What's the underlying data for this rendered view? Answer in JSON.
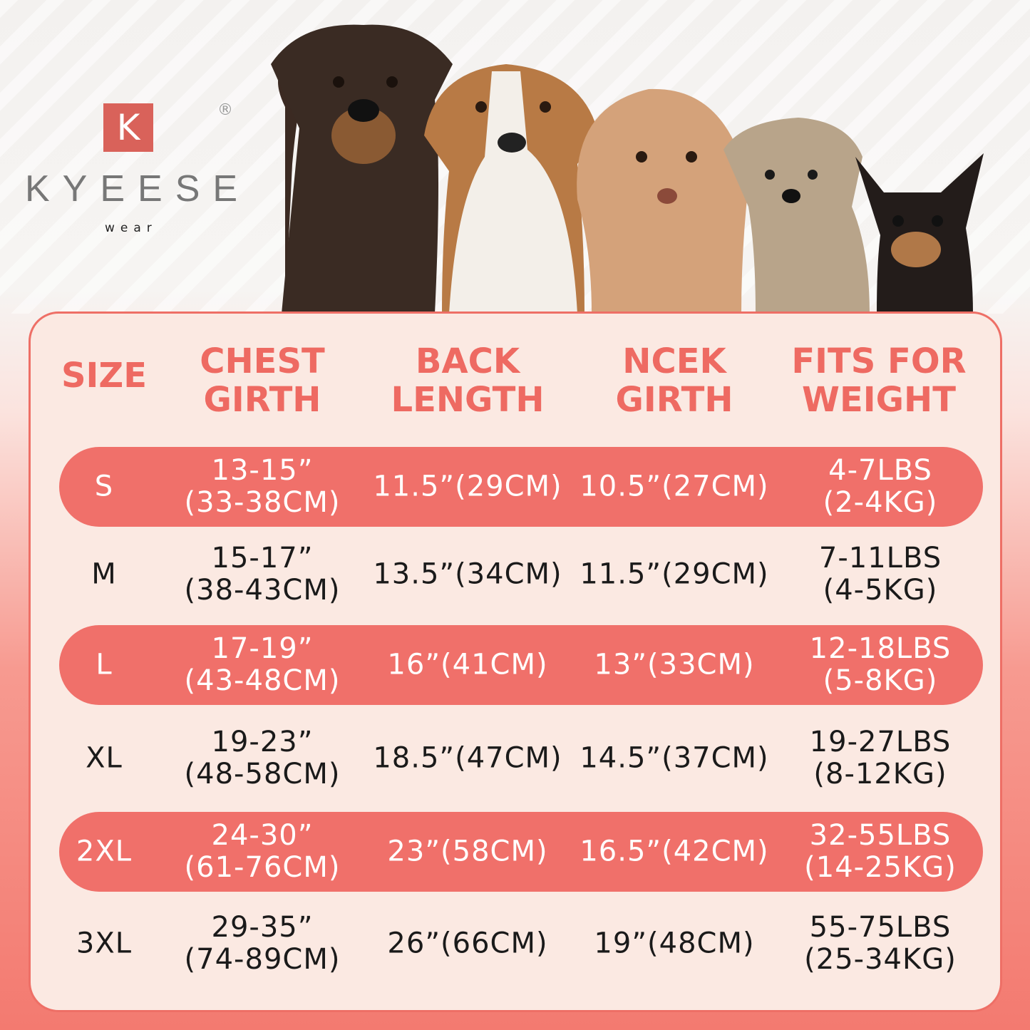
{
  "brand": {
    "mark": "K",
    "name": "KYEESE",
    "sub": "wear",
    "registered": "®"
  },
  "colors": {
    "accent": "#f0706a",
    "panel": "#fbe9e2",
    "header_text": "#ee6a62"
  },
  "headers": [
    [
      "SIZE"
    ],
    [
      "CHEST",
      "GIRTH"
    ],
    [
      "BACK",
      "LENGTH"
    ],
    [
      "NCEK",
      "GIRTH"
    ],
    [
      "FITS FOR",
      "WEIGHT"
    ]
  ],
  "rows": [
    {
      "size": "S",
      "chest": [
        "13-15”",
        "(33-38CM)"
      ],
      "back": "11.5”(29CM)",
      "neck": "10.5”(27CM)",
      "weight": [
        "4-7LBS",
        "(2-4KG)"
      ],
      "highlight": true
    },
    {
      "size": "M",
      "chest": [
        "15-17”",
        "(38-43CM)"
      ],
      "back": "13.5”(34CM)",
      "neck": "11.5”(29CM)",
      "weight": [
        "7-11LBS",
        "(4-5KG)"
      ],
      "highlight": false
    },
    {
      "size": "L",
      "chest": [
        "17-19”",
        "(43-48CM)"
      ],
      "back": "16”(41CM)",
      "neck": "13”(33CM)",
      "weight": [
        "12-18LBS",
        "(5-8KG)"
      ],
      "highlight": true
    },
    {
      "size": "XL",
      "chest": [
        "19-23”",
        "(48-58CM)"
      ],
      "back": "18.5”(47CM)",
      "neck": "14.5”(37CM)",
      "weight": [
        "19-27LBS",
        "(8-12KG)"
      ],
      "highlight": false
    },
    {
      "size": "2XL",
      "chest": [
        "24-30”",
        "(61-76CM)"
      ],
      "back": "23”(58CM)",
      "neck": "16.5”(42CM)",
      "weight": [
        "32-55LBS",
        "(14-25KG)"
      ],
      "highlight": true
    },
    {
      "size": "3XL",
      "chest": [
        "29-35”",
        "(74-89CM)"
      ],
      "back": "26”(66CM)",
      "neck": "19”(48CM)",
      "weight": [
        "55-75LBS",
        "(25-34KG)"
      ],
      "highlight": false
    }
  ],
  "dogs": [
    "doberman-photo",
    "beagle-photo",
    "poodle-photo",
    "terrier-photo",
    "chihuahua-photo"
  ]
}
